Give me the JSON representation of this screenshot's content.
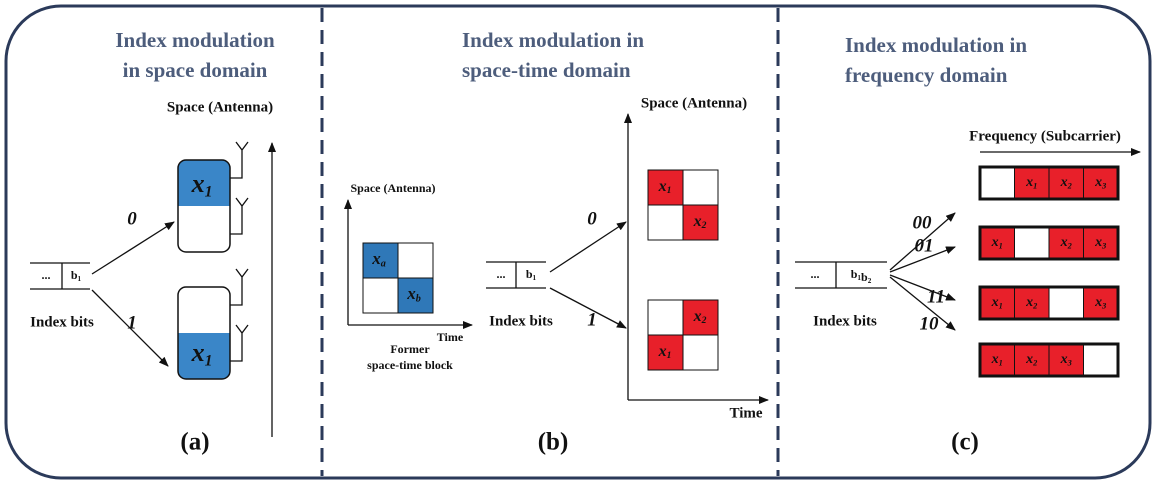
{
  "panels": [
    {
      "title": [
        "Index modulation",
        "in space domain"
      ],
      "axis_label": "Space (Antenna)",
      "index_bits": {
        "dots": "...",
        "bits": [
          {
            "base": "b",
            "sub": "1"
          }
        ],
        "label": "Index bits"
      },
      "branches": [
        "0",
        "1"
      ],
      "symbols": [
        {
          "base": "x",
          "sub": "1"
        },
        {
          "base": "x",
          "sub": "1"
        }
      ],
      "caption": "(a)"
    },
    {
      "title": [
        "Index modulation in",
        "space-time domain"
      ],
      "former": {
        "axis_y": "Space (Antenna)",
        "axis_x": "Time",
        "symbols": [
          {
            "base": "x",
            "sub": "a"
          },
          {
            "base": "x",
            "sub": "b"
          }
        ],
        "label": [
          "Former",
          "space-time block"
        ]
      },
      "index_bits": {
        "dots": "...",
        "bits": [
          {
            "base": "b",
            "sub": "1"
          }
        ],
        "label": "Index bits"
      },
      "branches": [
        "0",
        "1"
      ],
      "axis_y": "Space (Antenna)",
      "axis_x": "Time",
      "blocks": [
        [
          {
            "base": "x",
            "sub": "1"
          },
          {
            "base": "x",
            "sub": "2"
          }
        ],
        [
          {
            "base": "x",
            "sub": "2"
          },
          {
            "base": "x",
            "sub": "1"
          }
        ]
      ],
      "caption": "(b)"
    },
    {
      "title": [
        "Index modulation in",
        "frequency domain"
      ],
      "axis_label": "Frequency (Subcarrier)",
      "index_bits": {
        "dots": "...",
        "bits": [
          {
            "base": "b",
            "sub": "1"
          },
          {
            "base": "b",
            "sub": "2"
          }
        ],
        "label": "Index bits"
      },
      "branches": [
        "00",
        "01",
        "11",
        "10"
      ],
      "rows": [
        [
          null,
          {
            "base": "x",
            "sub": "1"
          },
          {
            "base": "x",
            "sub": "2"
          },
          {
            "base": "x",
            "sub": "3"
          }
        ],
        [
          {
            "base": "x",
            "sub": "1"
          },
          null,
          {
            "base": "x",
            "sub": "2"
          },
          {
            "base": "x",
            "sub": "3"
          }
        ],
        [
          {
            "base": "x",
            "sub": "1"
          },
          {
            "base": "x",
            "sub": "2"
          },
          null,
          {
            "base": "x",
            "sub": "3"
          }
        ],
        [
          {
            "base": "x",
            "sub": "1"
          },
          {
            "base": "x",
            "sub": "2"
          },
          {
            "base": "x",
            "sub": "3"
          },
          null
        ]
      ],
      "caption": "(c)"
    }
  ]
}
